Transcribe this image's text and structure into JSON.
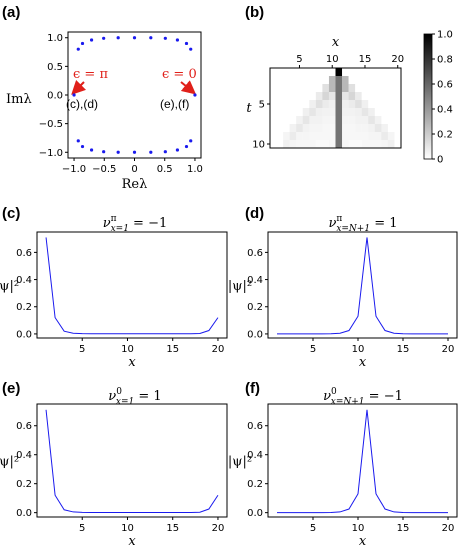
{
  "panel_labels": [
    "(a)",
    "(b)",
    "(c)",
    "(d)",
    "(e)",
    "(f)"
  ],
  "annotations": {
    "eps_pi": "ϵ = π",
    "eps_0": "ϵ = 0",
    "cd": "(c),(d)",
    "ef": "(e),(f)"
  },
  "colors": {
    "series": "#1a1aee",
    "annotation": "#e0201a"
  },
  "chart_data": [
    {
      "panel": "(a)",
      "type": "scatter",
      "xlabel": "Reλ",
      "ylabel": "Imλ",
      "xlim": [
        -1.1,
        1.1
      ],
      "ylim": [
        -1.1,
        1.1
      ],
      "xticks": [
        "−1.0",
        "−0.5",
        "0",
        "0.5",
        "1.0"
      ],
      "yticks": [
        "−1.0",
        "−0.5",
        "0.0",
        "0.5",
        "1.0"
      ],
      "points": [
        [
          -1.0,
          0.0
        ],
        [
          1.0,
          0.0
        ],
        [
          -0.93,
          0.8
        ],
        [
          -0.86,
          0.9
        ],
        [
          -0.71,
          0.96
        ],
        [
          -0.51,
          0.99
        ],
        [
          -0.27,
          1.0
        ],
        [
          0.0,
          1.0
        ],
        [
          0.27,
          1.0
        ],
        [
          0.51,
          0.99
        ],
        [
          0.71,
          0.96
        ],
        [
          0.86,
          0.9
        ],
        [
          0.93,
          0.8
        ],
        [
          -0.93,
          -0.8
        ],
        [
          -0.86,
          -0.9
        ],
        [
          -0.71,
          -0.96
        ],
        [
          -0.51,
          -0.99
        ],
        [
          -0.27,
          -1.0
        ],
        [
          0.0,
          -1.0
        ],
        [
          0.27,
          -1.0
        ],
        [
          0.51,
          -0.99
        ],
        [
          0.71,
          -0.96
        ],
        [
          0.86,
          -0.9
        ],
        [
          0.93,
          -0.8
        ]
      ]
    },
    {
      "panel": "(b)",
      "type": "heatmap",
      "xlabel": "x",
      "ylabel": "t",
      "xticks": [
        "5",
        "10",
        "15",
        "20"
      ],
      "yticks": [
        "5",
        "10"
      ],
      "colorbar_ticks": [
        "0",
        "0.2",
        "0.4",
        "0.6",
        "0.8",
        "1.0"
      ],
      "x_range": [
        1,
        20
      ],
      "t_range": [
        1,
        10
      ],
      "rows": [
        [
          0,
          0,
          0,
          0,
          0,
          0,
          0,
          0,
          0,
          0,
          1.0,
          0,
          0,
          0,
          0,
          0,
          0,
          0,
          0,
          0
        ],
        [
          0,
          0,
          0,
          0,
          0,
          0,
          0,
          0,
          0,
          0.28,
          0.55,
          0.28,
          0,
          0,
          0,
          0,
          0,
          0,
          0,
          0
        ],
        [
          0,
          0,
          0,
          0,
          0,
          0,
          0,
          0,
          0.12,
          0.28,
          0.55,
          0.28,
          0.12,
          0,
          0,
          0,
          0,
          0,
          0,
          0
        ],
        [
          0,
          0,
          0,
          0,
          0,
          0,
          0,
          0.08,
          0.16,
          0.1,
          0.55,
          0.1,
          0.16,
          0.08,
          0,
          0,
          0,
          0,
          0,
          0
        ],
        [
          0,
          0,
          0,
          0,
          0,
          0,
          0.06,
          0.12,
          0.08,
          0.06,
          0.55,
          0.06,
          0.08,
          0.12,
          0.06,
          0,
          0,
          0,
          0,
          0
        ],
        [
          0,
          0,
          0,
          0,
          0,
          0.06,
          0.1,
          0.06,
          0.05,
          0.05,
          0.55,
          0.05,
          0.05,
          0.06,
          0.1,
          0.06,
          0,
          0,
          0,
          0
        ],
        [
          0,
          0,
          0,
          0,
          0.05,
          0.1,
          0.05,
          0.05,
          0.04,
          0.04,
          0.55,
          0.04,
          0.04,
          0.05,
          0.05,
          0.1,
          0.05,
          0,
          0,
          0
        ],
        [
          0,
          0,
          0,
          0.05,
          0.09,
          0.05,
          0.04,
          0.04,
          0.03,
          0.03,
          0.55,
          0.03,
          0.03,
          0.04,
          0.04,
          0.05,
          0.09,
          0.05,
          0,
          0
        ],
        [
          0,
          0,
          0.04,
          0.08,
          0.04,
          0.04,
          0.03,
          0.03,
          0.03,
          0.03,
          0.55,
          0.03,
          0.03,
          0.03,
          0.03,
          0.04,
          0.04,
          0.08,
          0.04,
          0
        ],
        [
          0,
          0,
          0.06,
          0.04,
          0.03,
          0.03,
          0.03,
          0.02,
          0.02,
          0.03,
          0.55,
          0.03,
          0.02,
          0.02,
          0.03,
          0.03,
          0.03,
          0.04,
          0.06,
          0
        ]
      ]
    },
    {
      "panel": "(c)",
      "type": "line",
      "title_base": "ν",
      "title_sup": "π",
      "title_sub": "x=1",
      "title_rest": " = −1",
      "xlabel": "x",
      "ylabel": "|ψ|²",
      "xlim": [
        0,
        21
      ],
      "ylim": [
        -0.03,
        0.75
      ],
      "xticks": [
        "5",
        "10",
        "15",
        "20"
      ],
      "yticks": [
        "0.0",
        "0.2",
        "0.4",
        "0.6"
      ],
      "x": [
        1,
        2,
        3,
        4,
        5,
        6,
        7,
        8,
        9,
        10,
        11,
        12,
        13,
        14,
        15,
        16,
        17,
        18,
        19,
        20
      ],
      "y": [
        0.71,
        0.12,
        0.02,
        0.005,
        0.002,
        0.001,
        0.001,
        0.001,
        0.001,
        0.001,
        0.001,
        0.001,
        0.001,
        0.001,
        0.001,
        0.001,
        0.001,
        0.003,
        0.025,
        0.12
      ]
    },
    {
      "panel": "(d)",
      "type": "line",
      "title_base": "ν",
      "title_sup": "π",
      "title_sub": "x=N+1",
      "title_rest": " = 1",
      "xlabel": "x",
      "ylabel": "|ψ|²",
      "xlim": [
        0,
        21
      ],
      "ylim": [
        -0.03,
        0.75
      ],
      "xticks": [
        "5",
        "10",
        "15",
        "20"
      ],
      "yticks": [
        "0.0",
        "0.2",
        "0.4",
        "0.6"
      ],
      "x": [
        1,
        2,
        3,
        4,
        5,
        6,
        7,
        8,
        9,
        10,
        11,
        12,
        13,
        14,
        15,
        16,
        17,
        18,
        19,
        20
      ],
      "y": [
        0,
        0,
        0,
        0,
        0,
        0,
        0.001,
        0.005,
        0.025,
        0.13,
        0.71,
        0.13,
        0.025,
        0.005,
        0.001,
        0,
        0,
        0,
        0,
        0
      ]
    },
    {
      "panel": "(e)",
      "type": "line",
      "title_base": "ν",
      "title_sup": "0",
      "title_sub": "x=1",
      "title_rest": " = 1",
      "xlabel": "x",
      "ylabel": "|ψ|²",
      "xlim": [
        0,
        21
      ],
      "ylim": [
        -0.03,
        0.75
      ],
      "xticks": [
        "5",
        "10",
        "15",
        "20"
      ],
      "yticks": [
        "0.0",
        "0.2",
        "0.4",
        "0.6"
      ],
      "x": [
        1,
        2,
        3,
        4,
        5,
        6,
        7,
        8,
        9,
        10,
        11,
        12,
        13,
        14,
        15,
        16,
        17,
        18,
        19,
        20
      ],
      "y": [
        0.71,
        0.12,
        0.02,
        0.005,
        0.002,
        0.001,
        0.001,
        0.001,
        0.001,
        0.001,
        0.001,
        0.001,
        0.001,
        0.001,
        0.001,
        0.001,
        0.001,
        0.003,
        0.025,
        0.12
      ]
    },
    {
      "panel": "(f)",
      "type": "line",
      "title_base": "ν",
      "title_sup": "0",
      "title_sub": "x=N+1",
      "title_rest": " = −1",
      "xlabel": "x",
      "ylabel": "|ψ|²",
      "xlim": [
        0,
        21
      ],
      "ylim": [
        -0.03,
        0.75
      ],
      "xticks": [
        "5",
        "10",
        "15",
        "20"
      ],
      "yticks": [
        "0.0",
        "0.2",
        "0.4",
        "0.6"
      ],
      "x": [
        1,
        2,
        3,
        4,
        5,
        6,
        7,
        8,
        9,
        10,
        11,
        12,
        13,
        14,
        15,
        16,
        17,
        18,
        19,
        20
      ],
      "y": [
        0,
        0,
        0,
        0,
        0,
        0,
        0.001,
        0.005,
        0.025,
        0.13,
        0.71,
        0.13,
        0.025,
        0.005,
        0.001,
        0,
        0,
        0,
        0,
        0
      ]
    }
  ]
}
